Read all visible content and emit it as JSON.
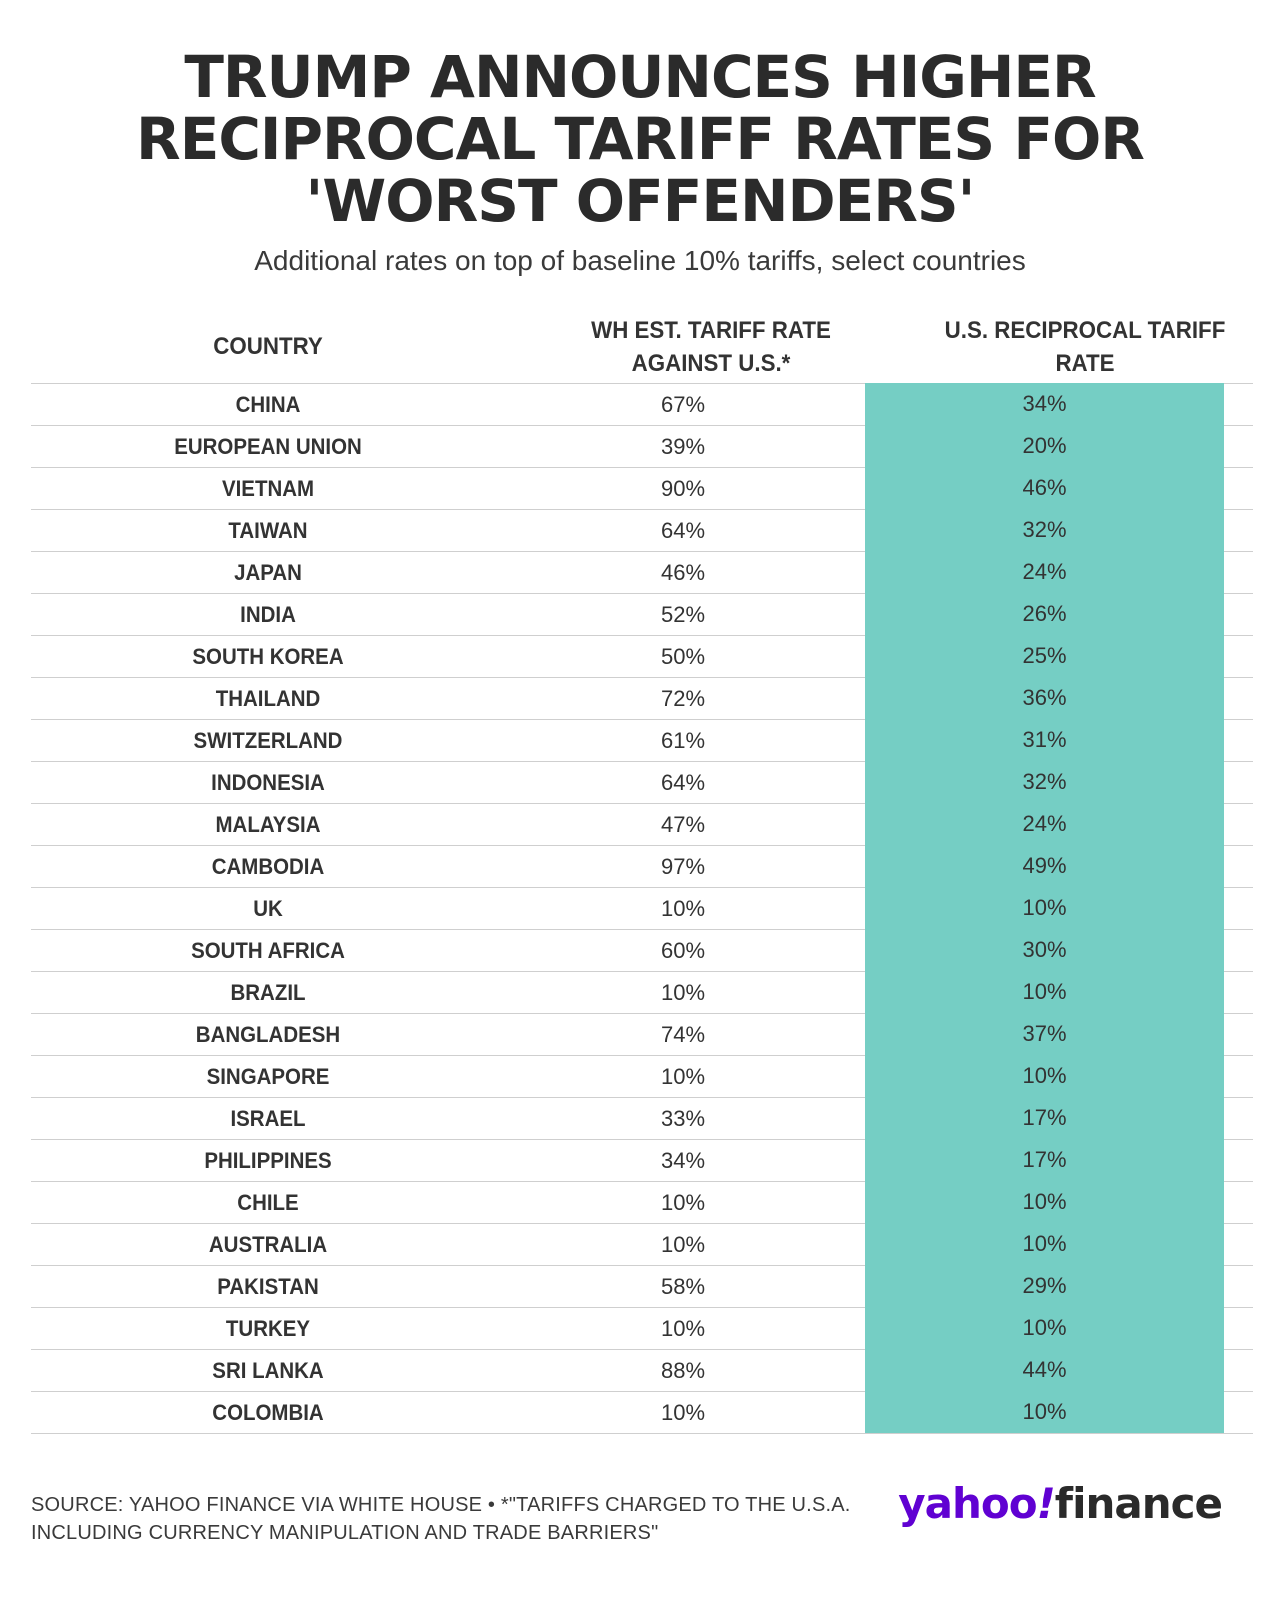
{
  "title_lines": [
    "TRUMP ANNOUNCES HIGHER",
    "RECIPROCAL TARIFF RATES FOR",
    "'WORST OFFENDERS'"
  ],
  "subtitle": "Additional rates on top of baseline 10% tariffs, select countries",
  "table": {
    "headers": {
      "country": "COUNTRY",
      "wh_line1": "WH EST. TARIFF RATE",
      "wh_line2": "AGAINST U.S.*",
      "us_line1": "U.S. RECIPROCAL TARIFF",
      "us_line2": "RATE"
    },
    "rows": [
      {
        "country": "CHINA",
        "wh": "67%",
        "us": "34%"
      },
      {
        "country": "EUROPEAN UNION",
        "wh": "39%",
        "us": "20%"
      },
      {
        "country": "VIETNAM",
        "wh": "90%",
        "us": "46%"
      },
      {
        "country": "TAIWAN",
        "wh": "64%",
        "us": "32%"
      },
      {
        "country": "JAPAN",
        "wh": "46%",
        "us": "24%"
      },
      {
        "country": "INDIA",
        "wh": "52%",
        "us": "26%"
      },
      {
        "country": "SOUTH KOREA",
        "wh": "50%",
        "us": "25%"
      },
      {
        "country": "THAILAND",
        "wh": "72%",
        "us": "36%"
      },
      {
        "country": "SWITZERLAND",
        "wh": "61%",
        "us": "31%"
      },
      {
        "country": "INDONESIA",
        "wh": "64%",
        "us": "32%"
      },
      {
        "country": "MALAYSIA",
        "wh": "47%",
        "us": "24%"
      },
      {
        "country": "CAMBODIA",
        "wh": "97%",
        "us": "49%"
      },
      {
        "country": "UK",
        "wh": "10%",
        "us": "10%"
      },
      {
        "country": "SOUTH AFRICA",
        "wh": "60%",
        "us": "30%"
      },
      {
        "country": "BRAZIL",
        "wh": "10%",
        "us": "10%"
      },
      {
        "country": "BANGLADESH",
        "wh": "74%",
        "us": "37%"
      },
      {
        "country": "SINGAPORE",
        "wh": "10%",
        "us": "10%"
      },
      {
        "country": "ISRAEL",
        "wh": "33%",
        "us": "17%"
      },
      {
        "country": "PHILIPPINES",
        "wh": "34%",
        "us": "17%"
      },
      {
        "country": "CHILE",
        "wh": "10%",
        "us": "10%"
      },
      {
        "country": "AUSTRALIA",
        "wh": "10%",
        "us": "10%"
      },
      {
        "country": "PAKISTAN",
        "wh": "58%",
        "us": "29%"
      },
      {
        "country": "TURKEY",
        "wh": "10%",
        "us": "10%"
      },
      {
        "country": "SRI LANKA",
        "wh": "88%",
        "us": "44%"
      },
      {
        "country": "COLOMBIA",
        "wh": "10%",
        "us": "10%"
      }
    ]
  },
  "footer": {
    "source": "SOURCE: YAHOO FINANCE VIA WHITE HOUSE • *\"TARIFFS CHARGED TO THE U.S.A. INCLUDING CURRENCY MANIPULATION AND TRADE BARRIERS\"",
    "logo_yahoo": "yahoo",
    "logo_bang": "!",
    "logo_finance": "finance"
  },
  "colors": {
    "highlight_column": "#75cec4",
    "brand_purple": "#6001d2"
  },
  "chart_data": {
    "type": "table",
    "title": "TRUMP ANNOUNCES HIGHER RECIPROCAL TARIFF RATES FOR 'WORST OFFENDERS'",
    "subtitle": "Additional rates on top of baseline 10% tariffs, select countries",
    "columns": [
      "COUNTRY",
      "WH EST. TARIFF RATE AGAINST U.S.*",
      "U.S. RECIPROCAL TARIFF RATE"
    ],
    "rows": [
      [
        "CHINA",
        67,
        34
      ],
      [
        "EUROPEAN UNION",
        39,
        20
      ],
      [
        "VIETNAM",
        90,
        46
      ],
      [
        "TAIWAN",
        64,
        32
      ],
      [
        "JAPAN",
        46,
        24
      ],
      [
        "INDIA",
        52,
        26
      ],
      [
        "SOUTH KOREA",
        50,
        25
      ],
      [
        "THAILAND",
        72,
        36
      ],
      [
        "SWITZERLAND",
        61,
        31
      ],
      [
        "INDONESIA",
        64,
        32
      ],
      [
        "MALAYSIA",
        47,
        24
      ],
      [
        "CAMBODIA",
        97,
        49
      ],
      [
        "UK",
        10,
        10
      ],
      [
        "SOUTH AFRICA",
        60,
        30
      ],
      [
        "BRAZIL",
        10,
        10
      ],
      [
        "BANGLADESH",
        74,
        37
      ],
      [
        "SINGAPORE",
        10,
        10
      ],
      [
        "ISRAEL",
        33,
        17
      ],
      [
        "PHILIPPINES",
        34,
        17
      ],
      [
        "CHILE",
        10,
        10
      ],
      [
        "AUSTRALIA",
        10,
        10
      ],
      [
        "PAKISTAN",
        58,
        29
      ],
      [
        "TURKEY",
        10,
        10
      ],
      [
        "SRI LANKA",
        88,
        44
      ],
      [
        "COLOMBIA",
        10,
        10
      ]
    ],
    "unit": "%"
  }
}
